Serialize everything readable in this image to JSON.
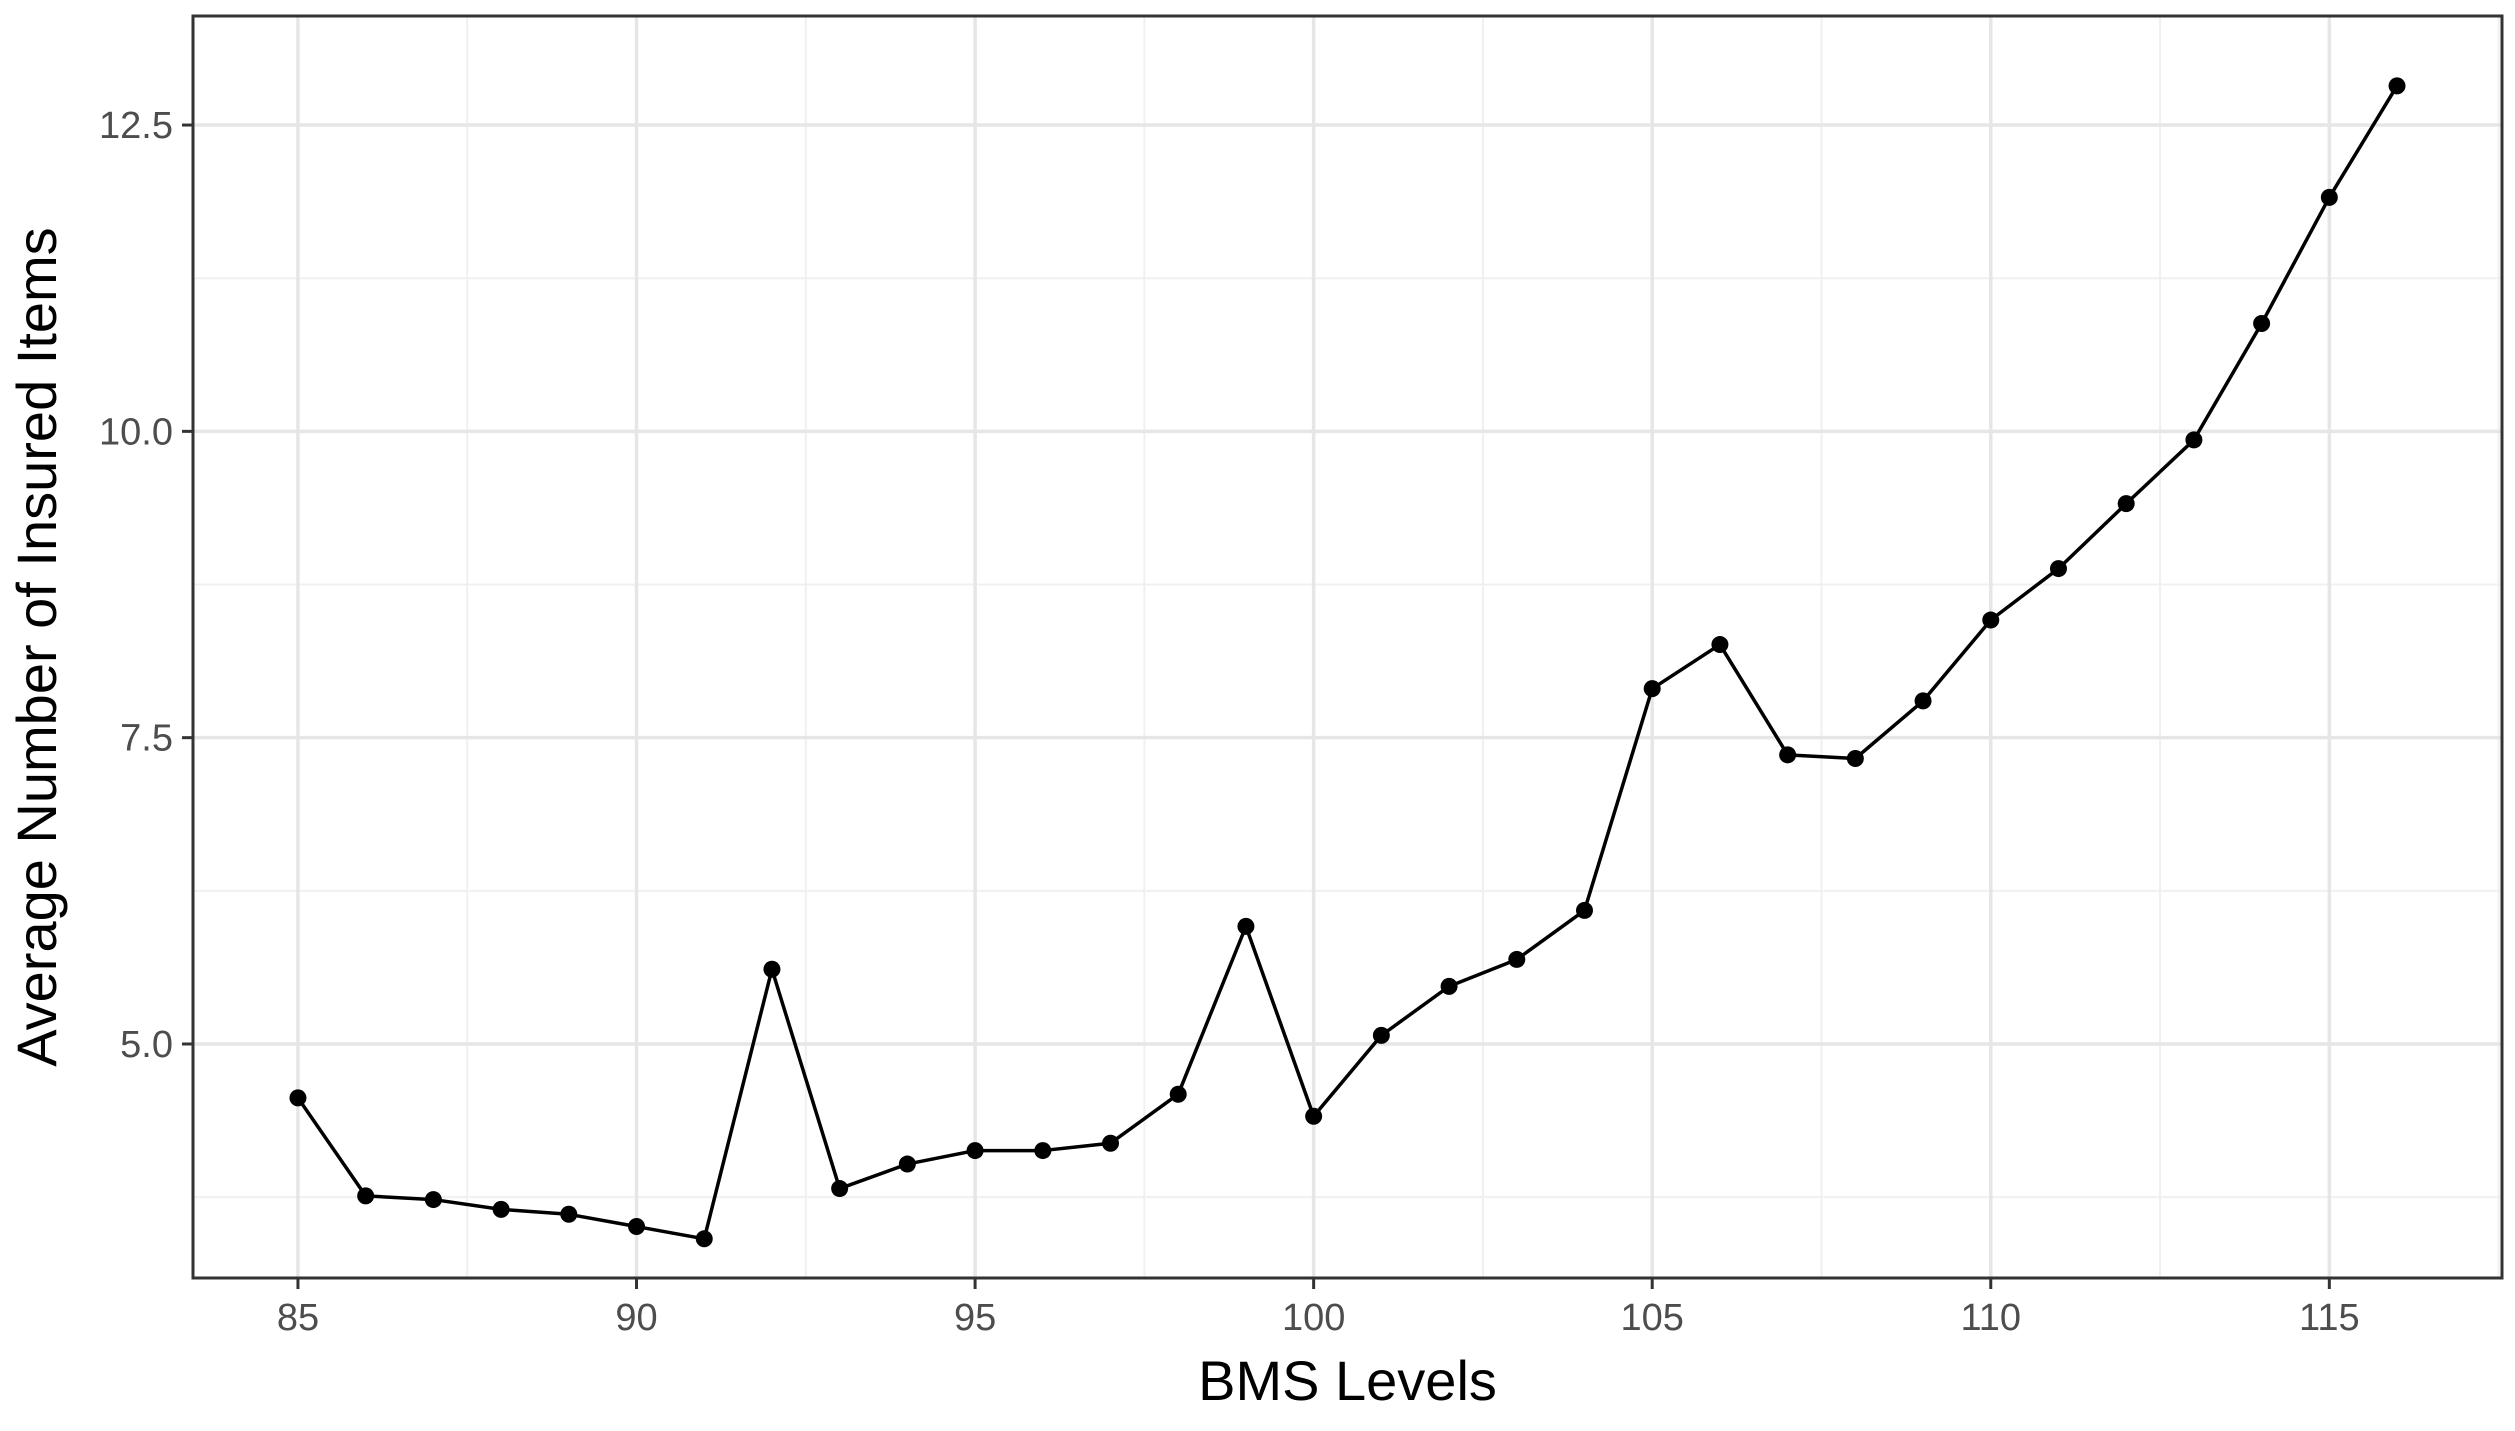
{
  "chart_data": {
    "type": "line",
    "title": "",
    "xlabel": "BMS Levels",
    "ylabel": "Average Number of Insured Items",
    "xlim": [
      83.45,
      117.55
    ],
    "ylim": [
      3.09,
      13.39
    ],
    "x_ticks": [
      85,
      90,
      95,
      100,
      105,
      110,
      115
    ],
    "x_tick_labels": [
      "85",
      "90",
      "95",
      "100",
      "105",
      "110",
      "115"
    ],
    "x_minor_ticks": [
      87.5,
      92.5,
      97.5,
      102.5,
      107.5,
      112.5,
      117.5
    ],
    "y_ticks": [
      5.0,
      7.5,
      10.0,
      12.5
    ],
    "y_tick_labels": [
      "5.0",
      "7.5",
      "10.0",
      "12.5"
    ],
    "y_minor_ticks": [
      3.75,
      6.25,
      8.75,
      11.25
    ],
    "grid": true,
    "legend": "none",
    "series": [
      {
        "color": "#000000",
        "x": [
          85,
          86,
          87,
          88,
          89,
          90,
          91,
          92,
          93,
          94,
          95,
          96,
          97,
          98,
          99,
          100,
          101,
          102,
          103,
          104,
          105,
          106,
          107,
          108,
          109,
          110,
          111,
          112,
          113,
          114,
          115,
          116
        ],
        "y": [
          4.56,
          3.76,
          3.73,
          3.65,
          3.61,
          3.51,
          3.41,
          5.61,
          3.82,
          4.02,
          4.13,
          4.13,
          4.19,
          4.59,
          5.96,
          4.41,
          5.07,
          5.47,
          5.69,
          6.09,
          7.9,
          8.26,
          7.36,
          7.33,
          7.8,
          8.46,
          8.88,
          9.41,
          9.93,
          10.88,
          11.91,
          12.82
        ]
      }
    ]
  }
}
